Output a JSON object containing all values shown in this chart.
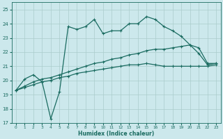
{
  "xlabel": "Humidex (Indice chaleur)",
  "background_color": "#cce8ec",
  "grid_color": "#aacccc",
  "line_color": "#1a6b60",
  "xlim": [
    -0.5,
    23.5
  ],
  "ylim": [
    17,
    25.5
  ],
  "yticks": [
    17,
    18,
    19,
    20,
    21,
    22,
    23,
    24,
    25
  ],
  "xticks": [
    0,
    1,
    2,
    3,
    4,
    5,
    6,
    7,
    8,
    9,
    10,
    11,
    12,
    13,
    14,
    15,
    16,
    17,
    18,
    19,
    20,
    21,
    22,
    23
  ],
  "line1_x": [
    0,
    1,
    2,
    3,
    4,
    5,
    6,
    7,
    8,
    9,
    10,
    11,
    12,
    13,
    14,
    15,
    16,
    17,
    18,
    19,
    20,
    21,
    22,
    23
  ],
  "line1_y": [
    19.3,
    20.1,
    20.4,
    19.9,
    17.3,
    19.2,
    23.8,
    23.6,
    23.8,
    24.3,
    23.3,
    23.5,
    23.5,
    24.0,
    24.0,
    24.5,
    24.3,
    23.8,
    23.5,
    23.1,
    22.5,
    21.9,
    21.1,
    21.2
  ],
  "line2_x": [
    0,
    1,
    2,
    3,
    4,
    5,
    6,
    7,
    8,
    9,
    10,
    11,
    12,
    13,
    14,
    15,
    16,
    17,
    18,
    19,
    20,
    21,
    22,
    23
  ],
  "line2_y": [
    19.3,
    19.6,
    19.9,
    20.1,
    20.2,
    20.4,
    20.6,
    20.8,
    21.0,
    21.2,
    21.3,
    21.5,
    21.6,
    21.8,
    21.9,
    22.1,
    22.2,
    22.2,
    22.3,
    22.4,
    22.5,
    22.3,
    21.2,
    21.2
  ],
  "line3_x": [
    0,
    1,
    2,
    3,
    4,
    5,
    6,
    7,
    8,
    9,
    10,
    11,
    12,
    13,
    14,
    15,
    16,
    17,
    18,
    19,
    20,
    21,
    22,
    23
  ],
  "line3_y": [
    19.3,
    19.5,
    19.7,
    19.9,
    20.0,
    20.2,
    20.3,
    20.5,
    20.6,
    20.7,
    20.8,
    20.9,
    21.0,
    21.1,
    21.1,
    21.2,
    21.1,
    21.0,
    21.0,
    21.0,
    21.0,
    21.0,
    21.0,
    21.1
  ]
}
